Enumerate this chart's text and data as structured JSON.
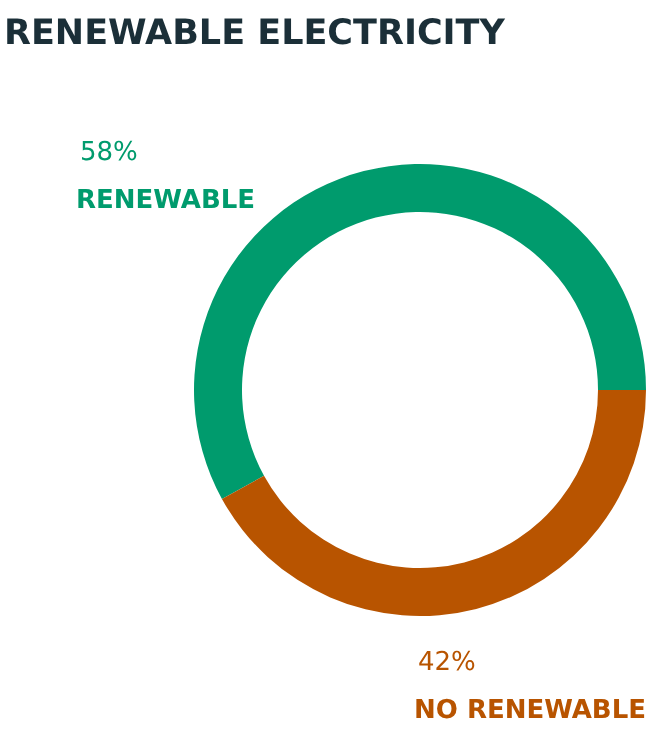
{
  "chart_data": {
    "type": "donut",
    "title": "RENEWABLE ELECTRICITY",
    "categories": [
      "RENEWABLE",
      "NO RENEWABLE"
    ],
    "values": [
      58,
      42
    ],
    "colors": [
      "#009b6d",
      "#b85400"
    ],
    "value_labels": [
      "58%",
      "42%"
    ]
  }
}
